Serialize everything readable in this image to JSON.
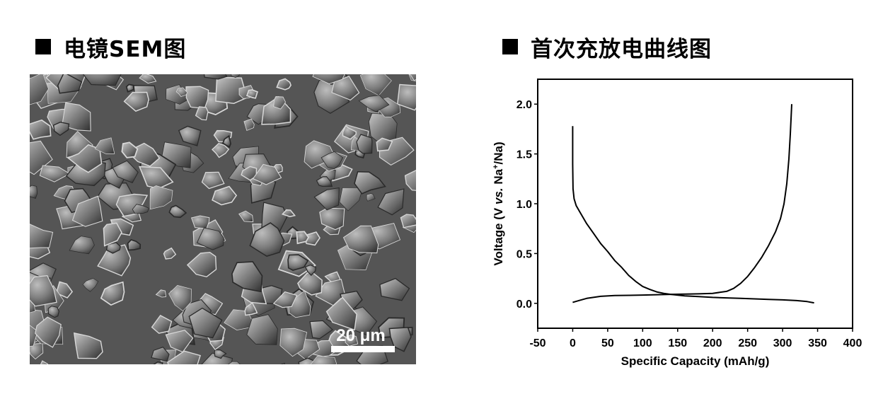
{
  "left_heading": {
    "title": "电镜SEM图"
  },
  "right_heading": {
    "title": "首次充放电曲线图"
  },
  "sem_image": {
    "scale_bar_label": "20 μm"
  },
  "colors": {
    "text": "#000000",
    "background": "#ffffff",
    "sem_background": "#5a5a5a"
  },
  "icons": {
    "heading_marker": "black-square-icon"
  },
  "chart_data": {
    "type": "line",
    "title": "",
    "xlabel": "Specific Capacity (mAh/g)",
    "ylabel_parts": {
      "pre": "Voltage (V ",
      "italic": "vs.",
      "post": " Na",
      "sup": "+",
      "tail": "/Na)"
    },
    "xlim": [
      -50,
      400
    ],
    "ylim": [
      -0.25,
      2.25
    ],
    "x_ticks": [
      -50,
      0,
      50,
      100,
      150,
      200,
      250,
      300,
      350,
      400
    ],
    "x_tick_labels": [
      "-50",
      "0",
      "50",
      "100",
      "150",
      "200",
      "250",
      "300",
      "350",
      "400"
    ],
    "y_ticks": [
      0.0,
      0.5,
      1.0,
      1.5,
      2.0
    ],
    "y_tick_labels": [
      "0.0",
      "0.5",
      "1.0",
      "1.5",
      "2.0"
    ],
    "grid": false,
    "legend": "none",
    "series": [
      {
        "points": [
          [
            0,
            1.78
          ],
          [
            0,
            1.4
          ],
          [
            0.5,
            1.15
          ],
          [
            2,
            1.05
          ],
          [
            5,
            0.98
          ],
          [
            10,
            0.92
          ],
          [
            20,
            0.8
          ],
          [
            30,
            0.7
          ],
          [
            40,
            0.6
          ],
          [
            50,
            0.52
          ],
          [
            60,
            0.43
          ],
          [
            70,
            0.36
          ],
          [
            80,
            0.28
          ],
          [
            90,
            0.22
          ],
          [
            100,
            0.17
          ],
          [
            110,
            0.14
          ],
          [
            120,
            0.115
          ],
          [
            130,
            0.1
          ],
          [
            140,
            0.09
          ],
          [
            160,
            0.075
          ],
          [
            180,
            0.068
          ],
          [
            200,
            0.06
          ],
          [
            220,
            0.055
          ],
          [
            240,
            0.05
          ],
          [
            260,
            0.045
          ],
          [
            280,
            0.04
          ],
          [
            300,
            0.035
          ],
          [
            320,
            0.028
          ],
          [
            335,
            0.018
          ],
          [
            345,
            0.005
          ]
        ]
      },
      {
        "points": [
          [
            0,
            0.01
          ],
          [
            10,
            0.03
          ],
          [
            20,
            0.05
          ],
          [
            40,
            0.07
          ],
          [
            60,
            0.078
          ],
          [
            80,
            0.08
          ],
          [
            100,
            0.083
          ],
          [
            120,
            0.087
          ],
          [
            140,
            0.09
          ],
          [
            160,
            0.092
          ],
          [
            180,
            0.095
          ],
          [
            200,
            0.1
          ],
          [
            210,
            0.11
          ],
          [
            220,
            0.12
          ],
          [
            230,
            0.15
          ],
          [
            240,
            0.2
          ],
          [
            250,
            0.27
          ],
          [
            260,
            0.36
          ],
          [
            270,
            0.46
          ],
          [
            280,
            0.58
          ],
          [
            290,
            0.72
          ],
          [
            297,
            0.85
          ],
          [
            302,
            1.0
          ],
          [
            306,
            1.2
          ],
          [
            309,
            1.45
          ],
          [
            311,
            1.7
          ],
          [
            313,
            2.0
          ]
        ]
      }
    ]
  }
}
